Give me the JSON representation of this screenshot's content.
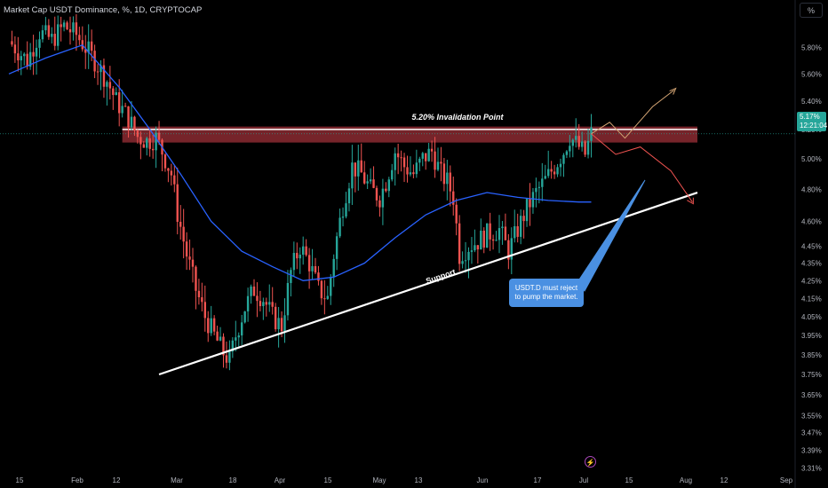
{
  "header": {
    "title": "Market Cap USDT Dominance, %, 1D, CRYPTOCAP"
  },
  "unit_button": "%",
  "last_price": {
    "value": "5.17%",
    "countdown": "12:21:04"
  },
  "colors": {
    "up": "#26a69a",
    "down": "#ef5350",
    "ma": "#2962ff",
    "zone": "#8b2a31",
    "callout": "#4a90e2"
  },
  "annotations": {
    "invalidation": "5.20% Invalidation Point",
    "support": "Support",
    "callout": [
      "USDT.D must reject",
      "to pump the market."
    ]
  },
  "chart_data": {
    "type": "candlestick",
    "title": "Market Cap USDT Dominance, %, 1D, CRYPTOCAP",
    "y_scale": "log",
    "ylim": [
      3.3,
      6.05
    ],
    "y_ticks": [
      "5.80%",
      "5.60%",
      "5.40%",
      "5.20%",
      "5.00%",
      "4.80%",
      "4.60%",
      "4.45%",
      "4.35%",
      "4.25%",
      "4.15%",
      "4.05%",
      "3.95%",
      "3.85%",
      "3.75%",
      "3.65%",
      "3.55%",
      "3.47%",
      "3.39%",
      "3.31%"
    ],
    "x_ticks": [
      "15",
      "Feb",
      "12",
      "Mar",
      "18",
      "Apr",
      "15",
      "May",
      "13",
      "Jun",
      "17",
      "Jul",
      "15",
      "Aug",
      "12",
      "Sep"
    ],
    "path_points": [
      [
        0,
        5.85
      ],
      [
        6,
        5.7
      ],
      [
        10,
        5.92
      ],
      [
        14,
        5.86
      ],
      [
        18,
        5.97
      ],
      [
        22,
        5.9
      ],
      [
        28,
        5.7
      ],
      [
        32,
        5.55
      ],
      [
        35,
        5.4
      ],
      [
        39,
        5.28
      ],
      [
        42,
        5.15
      ],
      [
        45,
        5.12
      ],
      [
        48,
        5.14
      ],
      [
        50,
        5.05
      ],
      [
        53,
        4.9
      ],
      [
        55,
        4.65
      ],
      [
        58,
        4.4
      ],
      [
        61,
        4.2
      ],
      [
        64,
        4.05
      ],
      [
        67,
        3.95
      ],
      [
        70,
        3.86
      ],
      [
        72,
        3.82
      ],
      [
        74,
        3.95
      ],
      [
        77,
        4.1
      ],
      [
        80,
        4.2
      ],
      [
        83,
        4.15
      ],
      [
        86,
        4.05
      ],
      [
        89,
        4.0
      ],
      [
        92,
        4.3
      ],
      [
        95,
        4.45
      ],
      [
        98,
        4.35
      ],
      [
        101,
        4.2
      ],
      [
        104,
        4.15
      ],
      [
        106,
        4.4
      ],
      [
        109,
        4.7
      ],
      [
        112,
        4.95
      ],
      [
        115,
        4.9
      ],
      [
        118,
        4.8
      ],
      [
        121,
        4.75
      ],
      [
        123,
        4.85
      ],
      [
        126,
        5.05
      ],
      [
        129,
        4.95
      ],
      [
        132,
        4.9
      ],
      [
        135,
        5.0
      ],
      [
        138,
        5.05
      ],
      [
        141,
        4.9
      ],
      [
        143,
        4.85
      ],
      [
        145,
        4.75
      ],
      [
        147,
        4.4
      ],
      [
        150,
        4.45
      ],
      [
        153,
        4.48
      ],
      [
        156,
        4.52
      ],
      [
        160,
        4.55
      ],
      [
        163,
        4.42
      ],
      [
        166,
        4.55
      ],
      [
        169,
        4.68
      ],
      [
        172,
        4.78
      ],
      [
        175,
        4.86
      ],
      [
        178,
        4.95
      ],
      [
        181,
        5.05
      ],
      [
        183,
        5.15
      ],
      [
        186,
        5.08
      ],
      [
        188,
        5.03
      ],
      [
        190,
        5.17
      ]
    ],
    "ma_points": [
      [
        0,
        5.6
      ],
      [
        12,
        5.72
      ],
      [
        24,
        5.82
      ],
      [
        36,
        5.5
      ],
      [
        46,
        5.2
      ],
      [
        56,
        4.9
      ],
      [
        66,
        4.6
      ],
      [
        76,
        4.42
      ],
      [
        86,
        4.33
      ],
      [
        96,
        4.25
      ],
      [
        106,
        4.27
      ],
      [
        116,
        4.35
      ],
      [
        126,
        4.5
      ],
      [
        136,
        4.64
      ],
      [
        146,
        4.73
      ],
      [
        156,
        4.78
      ],
      [
        166,
        4.75
      ],
      [
        176,
        4.73
      ],
      [
        186,
        4.72
      ],
      [
        190,
        4.72
      ]
    ],
    "invalidation_zone": [
      5.11,
      5.22
    ],
    "support_line": {
      "start": [
        49,
        3.75
      ],
      "end": [
        229,
        4.78
      ]
    },
    "projection_up": [
      [
        190,
        5.17
      ],
      [
        196,
        5.25
      ],
      [
        201,
        5.14
      ],
      [
        210,
        5.36
      ],
      [
        217,
        5.48
      ]
    ],
    "projection_down": [
      [
        190,
        5.17
      ],
      [
        198,
        5.03
      ],
      [
        206,
        5.08
      ],
      [
        216,
        4.92
      ],
      [
        223,
        4.72
      ]
    ]
  }
}
